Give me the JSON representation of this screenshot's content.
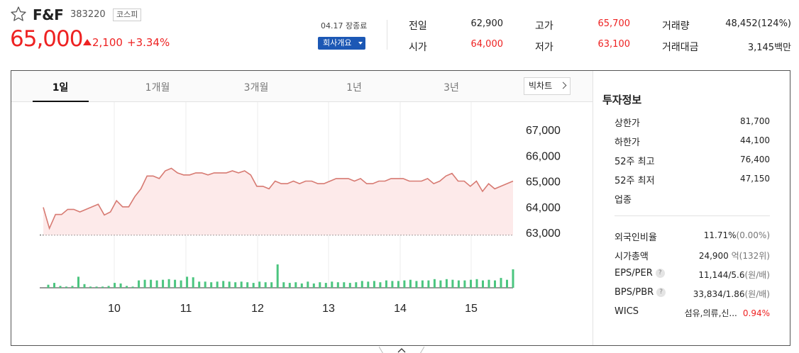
{
  "stock": {
    "name": "F&F",
    "code": "383220",
    "market": "코스피",
    "price": "65,000",
    "change": "2,100",
    "change_pct": "+3.34%",
    "date_status": "04.17 장종료",
    "company_info_label": "회사개요"
  },
  "quote": {
    "prev_close_label": "전일",
    "prev_close": "62,900",
    "open_label": "시가",
    "open": "64,000",
    "high_label": "고가",
    "high": "65,700",
    "low_label": "저가",
    "low": "63,100",
    "volume_label": "거래량",
    "volume": "48,452(124%)",
    "value_label": "거래대금",
    "value": "3,145백만"
  },
  "tabs": [
    {
      "label": "1일",
      "active": true
    },
    {
      "label": "1개월",
      "active": false
    },
    {
      "label": "3개월",
      "active": false
    },
    {
      "label": "1년",
      "active": false
    },
    {
      "label": "3년",
      "active": false
    }
  ],
  "big_chart_label": "빅차트",
  "invest": {
    "title": "투자정보",
    "upper_limit_label": "상한가",
    "upper_limit": "81,700",
    "lower_limit_label": "하한가",
    "lower_limit": "44,100",
    "high52_label": "52주 최고",
    "high52": "76,400",
    "low52_label": "52주 최저",
    "low52": "47,150",
    "sector_label": "업종",
    "foreign_label": "외국인비율",
    "foreign": "11.71%",
    "foreign_chg": "(0.00%)",
    "mcap_label": "시가총액",
    "mcap": "24,900",
    "mcap_unit": "억(132위)",
    "eps_label": "EPS/PER",
    "eps": "11,144/5.6",
    "eps_unit": "(원/배)",
    "bps_label": "BPS/PBR",
    "bps": "33,834/1.86",
    "bps_unit": "(원/배)",
    "wics_label": "WICS",
    "wics": "섬유,의류,신...",
    "wics_pct": "0.94%"
  },
  "chart_data": {
    "type": "line",
    "y_ticks": [
      "67,000",
      "66,000",
      "65,000",
      "64,000",
      "63,000"
    ],
    "x_ticks": [
      "10",
      "11",
      "12",
      "13",
      "14",
      "15"
    ],
    "ylim": [
      63000,
      67500
    ],
    "baseline": 62900,
    "price_series": [
      63980,
      63160,
      63700,
      63700,
      63900,
      63900,
      63800,
      63900,
      64000,
      64100,
      63680,
      63800,
      64240,
      64000,
      64000,
      64400,
      64700,
      65200,
      65200,
      65100,
      65400,
      65500,
      65320,
      65240,
      65240,
      65320,
      65320,
      65240,
      65320,
      65320,
      65320,
      65400,
      65320,
      65400,
      65240,
      64800,
      64800,
      64700,
      65000,
      64900,
      64900,
      65000,
      64900,
      65000,
      65000,
      64900,
      64900,
      65000,
      65100,
      65100,
      65100,
      65000,
      65100,
      64900,
      64900,
      65000,
      65000,
      65100,
      65100,
      65100,
      65000,
      65000,
      65000,
      65100,
      64900,
      65000,
      65200,
      65300,
      65000,
      65000,
      64800,
      65000,
      64600,
      64900,
      64700,
      64800,
      64900,
      65000
    ],
    "volume_series": [
      5,
      8,
      3,
      2,
      3,
      18,
      6,
      2,
      2,
      2,
      3,
      8,
      7,
      3,
      2,
      12,
      13,
      13,
      12,
      13,
      14,
      13,
      12,
      18,
      17,
      10,
      10,
      9,
      10,
      11,
      10,
      9,
      10,
      9,
      8,
      10,
      9,
      9,
      38,
      9,
      8,
      9,
      7,
      10,
      7,
      9,
      8,
      10,
      9,
      9,
      8,
      9,
      11,
      10,
      11,
      9,
      12,
      11,
      11,
      12,
      13,
      11,
      12,
      12,
      14,
      12,
      14,
      13,
      12,
      12,
      13,
      14,
      12,
      13,
      12,
      16,
      13,
      30
    ]
  }
}
